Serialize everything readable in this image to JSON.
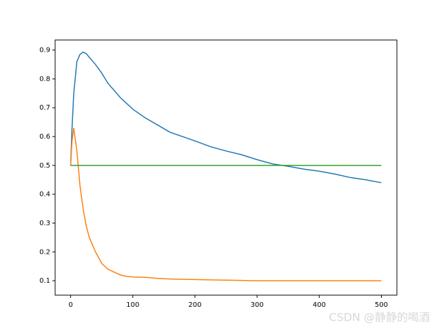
{
  "chart_data": {
    "type": "line",
    "x": [
      0,
      2,
      5,
      10,
      15,
      20,
      25,
      30,
      40,
      50,
      60,
      70,
      80,
      90,
      100,
      120,
      140,
      160,
      180,
      200,
      225,
      250,
      275,
      300,
      325,
      350,
      375,
      400,
      425,
      450,
      475,
      500
    ],
    "series": [
      {
        "color": "#1f77b4",
        "values": [
          0.5,
          0.62,
          0.75,
          0.86,
          0.885,
          0.893,
          0.888,
          0.875,
          0.85,
          0.82,
          0.785,
          0.76,
          0.735,
          0.715,
          0.695,
          0.665,
          0.64,
          0.615,
          0.6,
          0.585,
          0.565,
          0.55,
          0.537,
          0.52,
          0.505,
          0.497,
          0.487,
          0.48,
          0.47,
          0.458,
          0.45,
          0.44
        ]
      },
      {
        "color": "#ff7f0e",
        "values": [
          0.5,
          0.58,
          0.63,
          0.55,
          0.43,
          0.35,
          0.29,
          0.25,
          0.2,
          0.16,
          0.14,
          0.13,
          0.12,
          0.115,
          0.113,
          0.112,
          0.108,
          0.106,
          0.105,
          0.104,
          0.103,
          0.102,
          0.101,
          0.1,
          0.1,
          0.1,
          0.1,
          0.1,
          0.1,
          0.1,
          0.1,
          0.1
        ]
      },
      {
        "color": "#2ca02c",
        "values": [
          0.5,
          0.5,
          0.5,
          0.5,
          0.5,
          0.5,
          0.5,
          0.5,
          0.5,
          0.5,
          0.5,
          0.5,
          0.5,
          0.5,
          0.5,
          0.5,
          0.5,
          0.5,
          0.5,
          0.5,
          0.5,
          0.5,
          0.5,
          0.5,
          0.5,
          0.5,
          0.5,
          0.5,
          0.5,
          0.5,
          0.5,
          0.5
        ]
      }
    ],
    "xlim": [
      -25,
      525
    ],
    "ylim": [
      0.05,
      0.935
    ],
    "xticks": [
      0,
      100,
      200,
      300,
      400,
      500
    ],
    "yticks": [
      0.1,
      0.2,
      0.3,
      0.4,
      0.5,
      0.6,
      0.7,
      0.8,
      0.9
    ],
    "grid": false
  },
  "watermark": "CSDN @静静的喝酒"
}
